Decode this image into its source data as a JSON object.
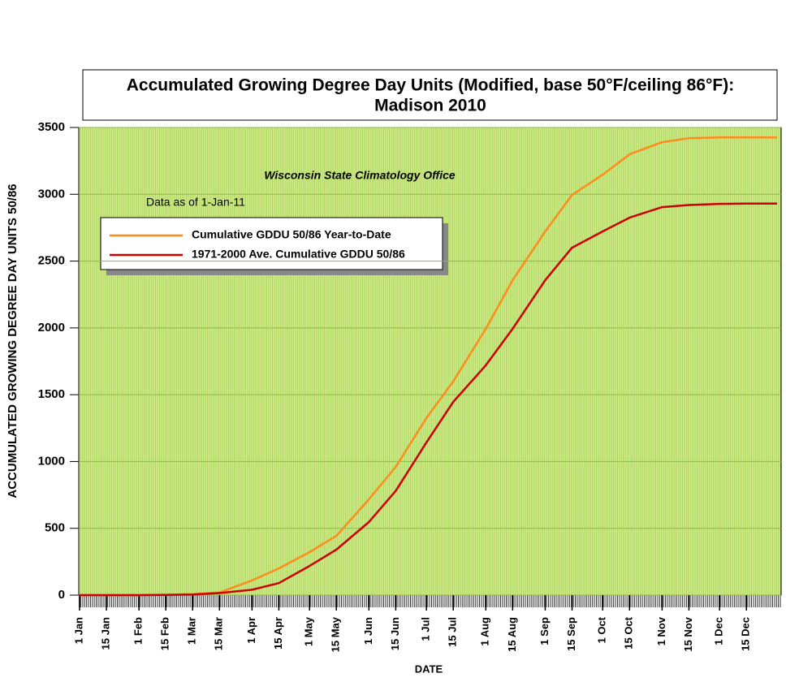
{
  "chart_data": {
    "type": "line",
    "title": [
      "Accumulated Growing Degree Day Units (Modified, base 50°F/ceiling 86°F):",
      "Madison 2010"
    ],
    "annotations": [
      "Wisconsin State Climatology Office",
      "Data as of 1-Jan-11"
    ],
    "x_label": "DATE",
    "y_label": "ACCUMULATED GROWING DEGREE DAY UNITS 50/86",
    "x": [
      1,
      15,
      32,
      46,
      60,
      74,
      91,
      105,
      121,
      135,
      152,
      166,
      182,
      196,
      213,
      227,
      244,
      258,
      274,
      288,
      305,
      319,
      335,
      349,
      365
    ],
    "series": [
      {
        "name": "Cumulative GDDU 50/86 Year-to-Date",
        "color": "#ff8c1a",
        "values": [
          0,
          0,
          0,
          3,
          8,
          20,
          110,
          200,
          322,
          443,
          717,
          960,
          1325,
          1600,
          1993,
          2357,
          2722,
          2995,
          3147,
          3299,
          3390,
          3420,
          3425,
          3425,
          3425
        ]
      },
      {
        "name": "1971-2000 Ave. Cumulative GDDU 50/86",
        "color": "#cc0000",
        "values": [
          0,
          0,
          0,
          2,
          5,
          15,
          40,
          90,
          218,
          340,
          547,
          780,
          1142,
          1446,
          1720,
          1993,
          2357,
          2600,
          2722,
          2825,
          2904,
          2920,
          2928,
          2930,
          2930
        ]
      }
    ],
    "xlim": [
      1,
      365
    ],
    "xticks": [
      {
        "value": 1,
        "label": "1 Jan"
      },
      {
        "value": 15,
        "label": "15 Jan"
      },
      {
        "value": 32,
        "label": "1 Feb"
      },
      {
        "value": 46,
        "label": "15 Feb"
      },
      {
        "value": 60,
        "label": "1 Mar"
      },
      {
        "value": 74,
        "label": "15 Mar"
      },
      {
        "value": 91,
        "label": "1 Apr"
      },
      {
        "value": 105,
        "label": "15 Apr"
      },
      {
        "value": 121,
        "label": "1 May"
      },
      {
        "value": 135,
        "label": "15 May"
      },
      {
        "value": 152,
        "label": "1 Jun"
      },
      {
        "value": 166,
        "label": "15 Jun"
      },
      {
        "value": 182,
        "label": "1 Jul"
      },
      {
        "value": 196,
        "label": "15 Jul"
      },
      {
        "value": 213,
        "label": "1 Aug"
      },
      {
        "value": 227,
        "label": "15 Aug"
      },
      {
        "value": 244,
        "label": "1 Sep"
      },
      {
        "value": 258,
        "label": "15 Sep"
      },
      {
        "value": 274,
        "label": "1 Oct"
      },
      {
        "value": 288,
        "label": "15 Oct"
      },
      {
        "value": 305,
        "label": "1 Nov"
      },
      {
        "value": 319,
        "label": "15 Nov"
      },
      {
        "value": 335,
        "label": "1 Dec"
      },
      {
        "value": 349,
        "label": "15 Dec"
      }
    ],
    "ylim": [
      0,
      3500
    ],
    "yticks": [
      0,
      500,
      1000,
      1500,
      2000,
      2500,
      3000,
      3500
    ],
    "grid": true
  }
}
